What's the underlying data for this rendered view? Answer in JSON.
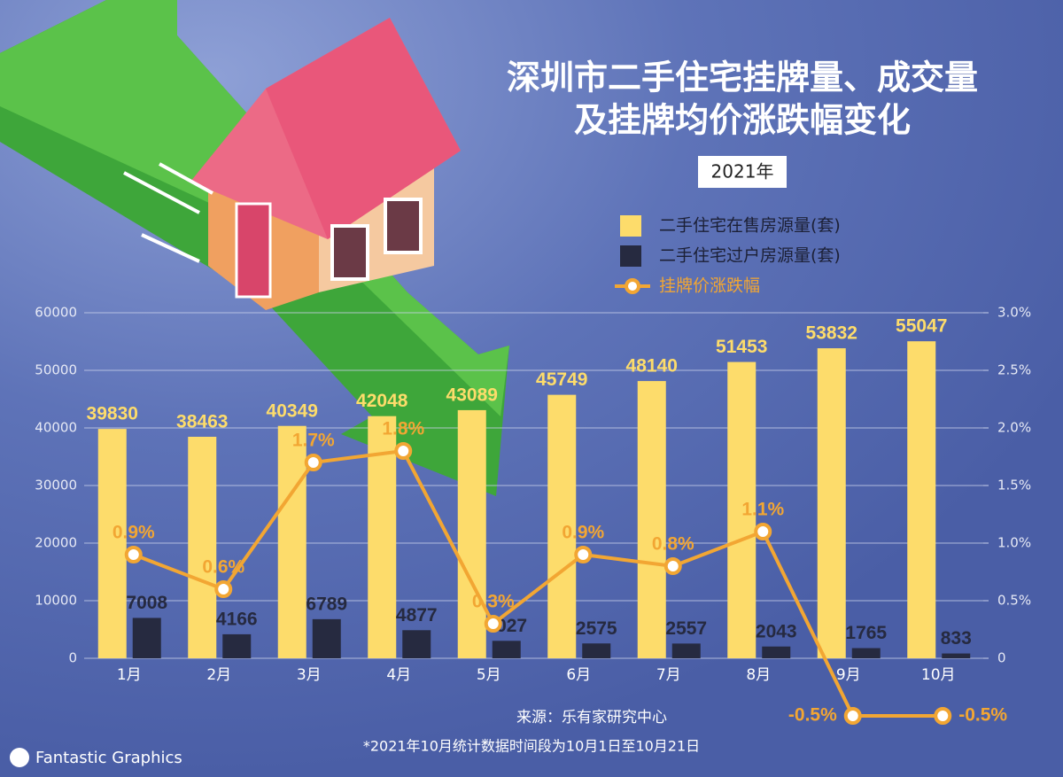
{
  "chart_data": {
    "type": "bar",
    "title_lines": [
      "深圳市二手住宅挂牌量、成交量",
      "及挂牌均价涨跌幅变化"
    ],
    "subtitle": "2021年",
    "categories": [
      "1月",
      "2月",
      "3月",
      "4月",
      "5月",
      "6月",
      "7月",
      "8月",
      "9月",
      "10月"
    ],
    "series": [
      {
        "name": "二手住宅在售房源量(套)",
        "color": "#fddc6b",
        "values": [
          39830,
          38463,
          40349,
          42048,
          43089,
          45749,
          48140,
          51453,
          53832,
          55047
        ]
      },
      {
        "name": "二手住宅过户房源量(套)",
        "color": "#262a40",
        "values": [
          7008,
          4166,
          6789,
          4877,
          3027,
          2575,
          2557,
          2043,
          1765,
          833
        ]
      },
      {
        "name": "挂牌价涨跌幅",
        "type": "line",
        "axis": "y2",
        "color": "#f2a633",
        "values": [
          0.9,
          0.6,
          1.7,
          1.8,
          0.3,
          0.9,
          0.8,
          1.1,
          -0.5,
          -0.5
        ],
        "value_labels": [
          "0.9%",
          "0.6%",
          "1.7%",
          "1.8%",
          "0.3%",
          "0.9%",
          "0.8%",
          "1.1%",
          "-0.5%",
          "-0.5%"
        ]
      }
    ],
    "ylim": [
      0,
      60000
    ],
    "yticks": [
      0,
      10000,
      20000,
      30000,
      40000,
      50000,
      60000
    ],
    "y2lim": [
      0,
      3
    ],
    "y2ticks": [
      0,
      {
        "value": 0.5,
        "label": "0.5%"
      },
      {
        "value": 1,
        "label": "1.0%"
      },
      {
        "value": 1.5,
        "label": "1.5%"
      },
      {
        "value": 2,
        "label": "2.0%"
      },
      {
        "value": 2.5,
        "label": "2.5%"
      },
      {
        "value": 3,
        "label": "3.0%"
      }
    ],
    "grid": true,
    "source": "来源：乐有家研究中心",
    "note": "*2021年10月统计数据时间段为10月1日至10月21日",
    "watermark": "Fantastic Graphics"
  }
}
